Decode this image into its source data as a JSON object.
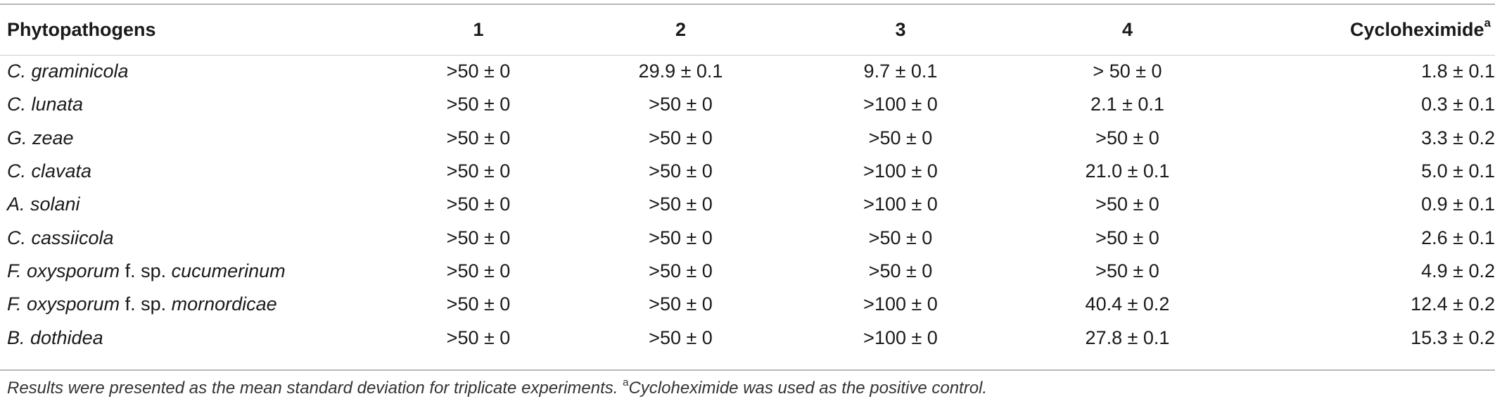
{
  "table": {
    "headers": [
      "Phytopathogens",
      "1",
      "2",
      "3",
      "4",
      "Cycloheximide"
    ],
    "header_superscript": "a",
    "rows": [
      {
        "name_parts": [
          {
            "text": "C. graminicola",
            "italic": true
          }
        ],
        "values": [
          ">50 ± 0",
          "29.9 ± 0.1",
          "9.7 ± 0.1",
          "> 50 ± 0",
          "1.8 ± 0.1"
        ]
      },
      {
        "name_parts": [
          {
            "text": "C. lunata",
            "italic": true
          }
        ],
        "values": [
          ">50 ± 0",
          ">50 ± 0",
          ">100 ± 0",
          "2.1 ± 0.1",
          "0.3 ± 0.1"
        ]
      },
      {
        "name_parts": [
          {
            "text": "G. zeae",
            "italic": true
          }
        ],
        "values": [
          ">50 ± 0",
          ">50 ± 0",
          ">50 ± 0",
          ">50 ± 0",
          "3.3 ± 0.2"
        ]
      },
      {
        "name_parts": [
          {
            "text": "C. clavata",
            "italic": true
          }
        ],
        "values": [
          ">50 ± 0",
          ">50 ± 0",
          ">100 ± 0",
          "21.0 ± 0.1",
          "5.0 ± 0.1"
        ]
      },
      {
        "name_parts": [
          {
            "text": "A. solani",
            "italic": true
          }
        ],
        "values": [
          ">50 ± 0",
          ">50 ± 0",
          ">100 ± 0",
          ">50 ± 0",
          "0.9 ± 0.1"
        ]
      },
      {
        "name_parts": [
          {
            "text": "C. cassiicola",
            "italic": true
          }
        ],
        "values": [
          ">50 ± 0",
          ">50 ± 0",
          ">50 ± 0",
          ">50 ± 0",
          "2.6 ± 0.1"
        ]
      },
      {
        "name_parts": [
          {
            "text": "F. oxysporum",
            "italic": true
          },
          {
            "text": " f. sp. ",
            "italic": false
          },
          {
            "text": "cucumerinum",
            "italic": true
          }
        ],
        "values": [
          ">50 ± 0",
          ">50 ± 0",
          ">50 ± 0",
          ">50 ± 0",
          "4.9 ± 0.2"
        ]
      },
      {
        "name_parts": [
          {
            "text": "F. oxysporum",
            "italic": true
          },
          {
            "text": " f. sp. ",
            "italic": false
          },
          {
            "text": "mornordicae",
            "italic": true
          }
        ],
        "values": [
          ">50 ± 0",
          ">50 ± 0",
          ">100 ± 0",
          "40.4 ± 0.2",
          "12.4 ± 0.2"
        ]
      },
      {
        "name_parts": [
          {
            "text": "B. dothidea",
            "italic": true
          }
        ],
        "values": [
          ">50 ± 0",
          ">50 ± 0",
          ">100 ± 0",
          "27.8 ± 0.1",
          "15.3 ± 0.2"
        ]
      }
    ]
  },
  "footnote": {
    "text_before": "Results were presented as the mean standard deviation for triplicate experiments. ",
    "superscript": "a",
    "text_after": "Cycloheximide was used as the positive control."
  }
}
